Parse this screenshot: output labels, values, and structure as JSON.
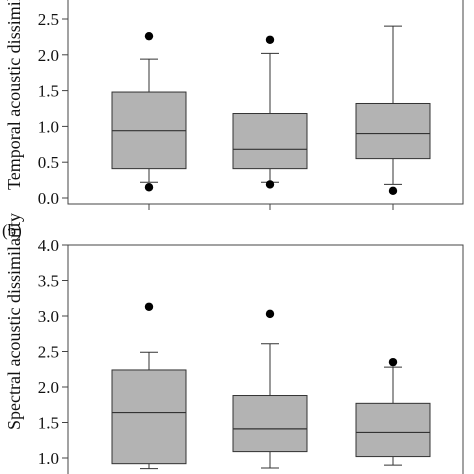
{
  "chart_data": [
    {
      "type": "box",
      "panel_label": "",
      "ylabel": "Temporal acoustic dissimilarity",
      "ylim": [
        0.0,
        2.72
      ],
      "yticks": [
        0.0,
        0.5,
        1.0,
        1.5,
        2.0,
        2.5
      ],
      "ytick_labels": [
        "0.0",
        "0.5",
        "1.0",
        "1.5",
        "2.0",
        "2.5"
      ],
      "categories": [
        "",
        "",
        ""
      ],
      "boxes": [
        {
          "whisker_low": 0.22,
          "q1": 0.41,
          "median": 0.94,
          "q3": 1.48,
          "whisker_high": 1.94,
          "outliers": [
            0.15,
            2.26
          ]
        },
        {
          "whisker_low": 0.22,
          "q1": 0.41,
          "median": 0.68,
          "q3": 1.18,
          "whisker_high": 2.02,
          "outliers": [
            0.19,
            2.21
          ]
        },
        {
          "whisker_low": 0.19,
          "q1": 0.55,
          "median": 0.9,
          "q3": 1.32,
          "whisker_high": 2.4,
          "outliers": [
            0.1
          ]
        }
      ],
      "box_fill": "#b3b3b3",
      "line_color": "#333333"
    },
    {
      "type": "box",
      "panel_label": "(b)",
      "ylabel": "Spectral acoustic dissimilarity",
      "ylim": [
        0.9,
        4.0
      ],
      "yticks": [
        1.0,
        1.5,
        2.0,
        2.5,
        3.0,
        3.5,
        4.0
      ],
      "ytick_labels": [
        "1.0",
        "1.5",
        "2.0",
        "2.5",
        "3.0",
        "3.5",
        "4.0"
      ],
      "categories": [
        "",
        "",
        ""
      ],
      "boxes": [
        {
          "whisker_low": 0.85,
          "q1": 0.92,
          "median": 1.64,
          "q3": 2.24,
          "whisker_high": 2.49,
          "outliers": [
            3.13
          ]
        },
        {
          "whisker_low": 0.86,
          "q1": 1.09,
          "median": 1.41,
          "q3": 1.88,
          "whisker_high": 2.61,
          "outliers": [
            3.03
          ]
        },
        {
          "whisker_low": 0.9,
          "q1": 1.02,
          "median": 1.36,
          "q3": 1.77,
          "whisker_high": 2.28,
          "outliers": [
            2.35
          ]
        }
      ],
      "box_fill": "#b3b3b3",
      "line_color": "#333333"
    }
  ]
}
